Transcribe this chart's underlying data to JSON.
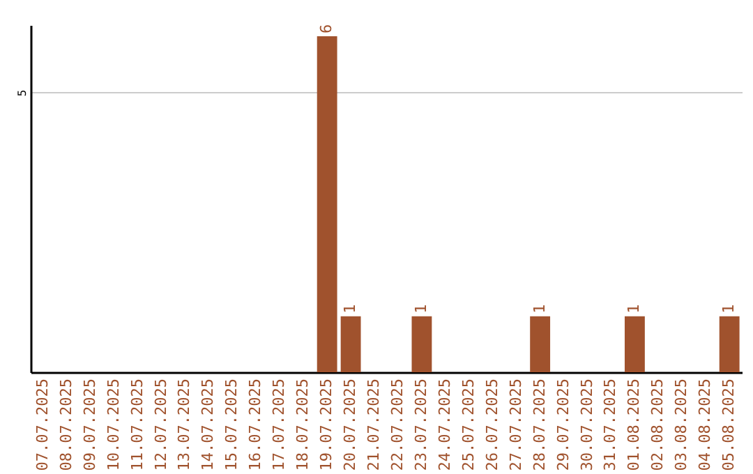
{
  "chart_data": {
    "type": "bar",
    "categories": [
      "07.07.2025",
      "08.07.2025",
      "09.07.2025",
      "10.07.2025",
      "11.07.2025",
      "12.07.2025",
      "13.07.2025",
      "14.07.2025",
      "15.07.2025",
      "16.07.2025",
      "17.07.2025",
      "18.07.2025",
      "19.07.2025",
      "20.07.2025",
      "21.07.2025",
      "22.07.2025",
      "23.07.2025",
      "24.07.2025",
      "25.07.2025",
      "26.07.2025",
      "27.07.2025",
      "28.07.2025",
      "29.07.2025",
      "30.07.2025",
      "31.07.2025",
      "01.08.2025",
      "02.08.2025",
      "03.08.2025",
      "04.08.2025",
      "05.08.2025"
    ],
    "values": [
      null,
      null,
      null,
      null,
      null,
      null,
      null,
      null,
      null,
      null,
      null,
      null,
      6,
      1,
      null,
      null,
      1,
      null,
      null,
      null,
      null,
      1,
      null,
      null,
      null,
      1,
      null,
      null,
      null,
      1
    ],
    "value_labels": [
      null,
      null,
      null,
      null,
      null,
      null,
      null,
      null,
      null,
      null,
      null,
      null,
      "6",
      "1",
      null,
      null,
      "1",
      null,
      null,
      null,
      null,
      "1",
      null,
      null,
      null,
      "1",
      null,
      null,
      null,
      "1"
    ],
    "color": "#a0522d",
    "ylim": [
      0,
      6.2
    ],
    "yticks": [
      5
    ],
    "grid": "y"
  }
}
